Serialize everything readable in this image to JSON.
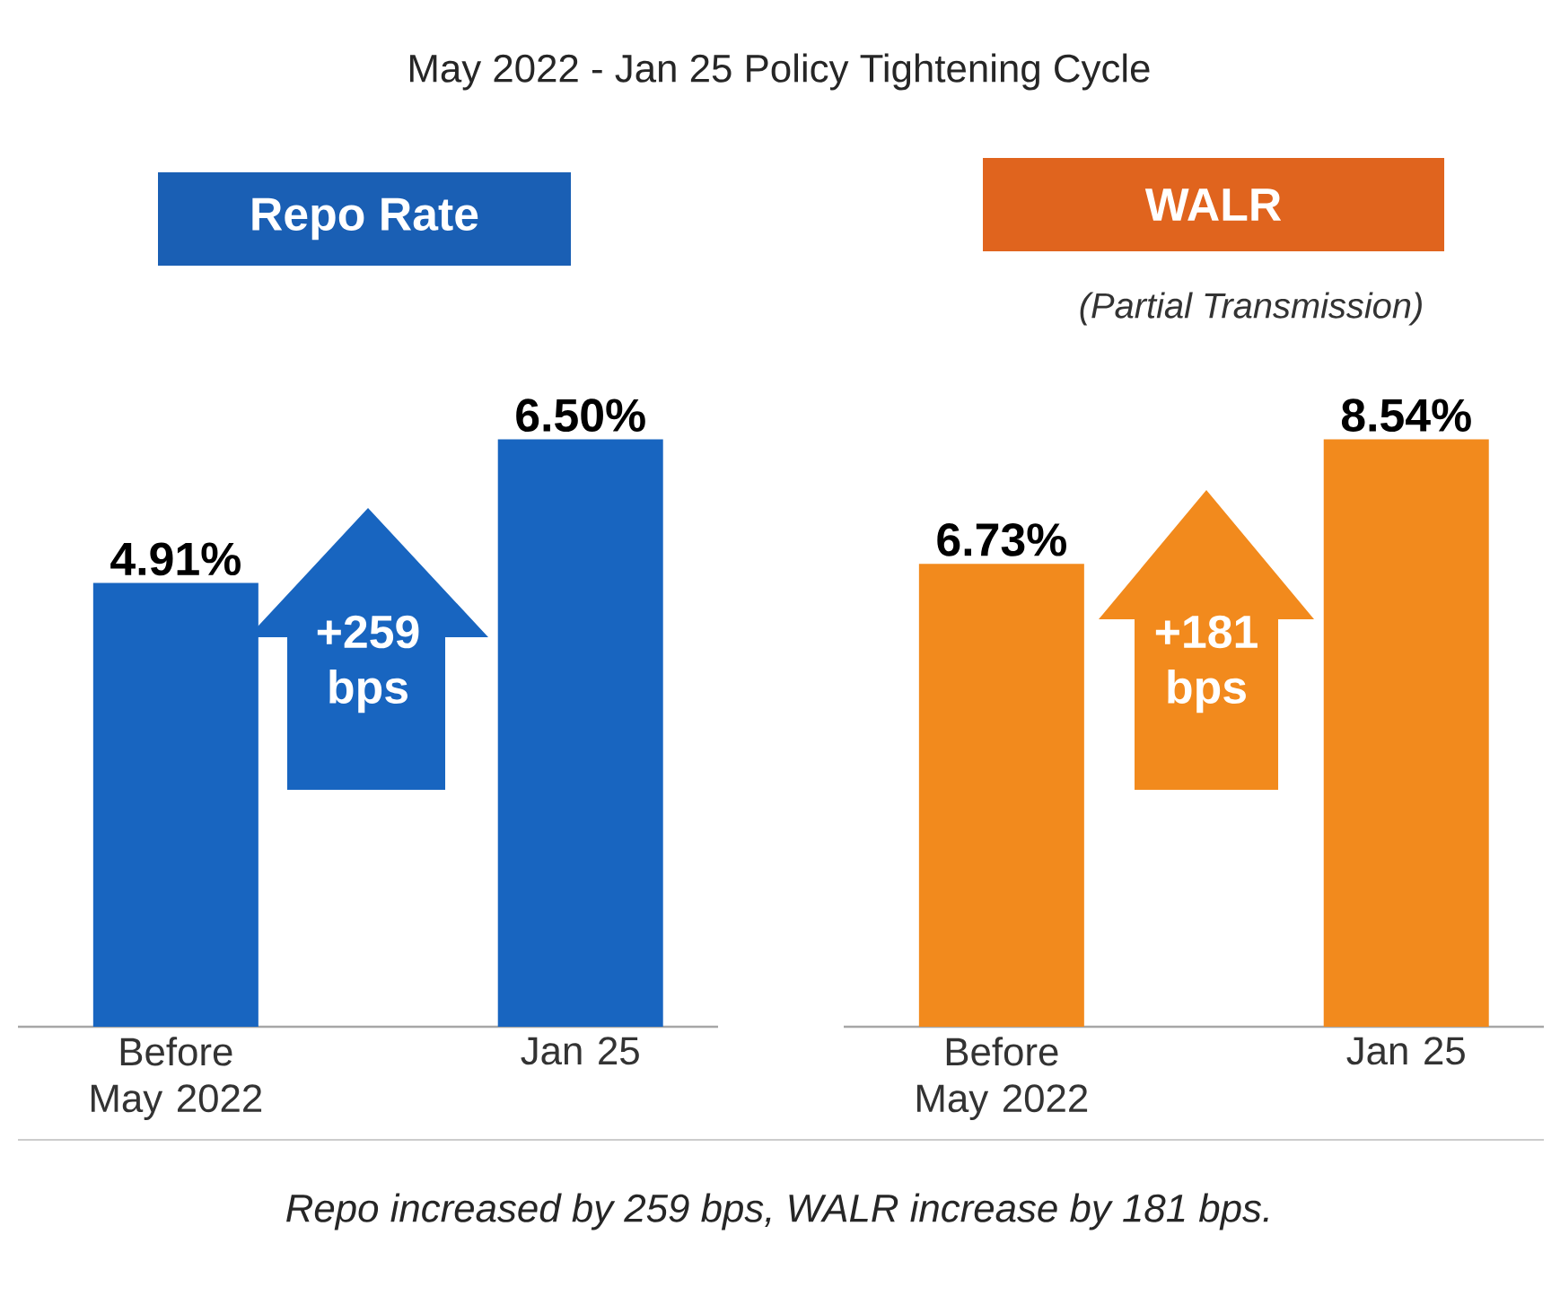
{
  "chart_data": [
    {
      "type": "bar",
      "title": "Repo Rate",
      "categories": [
        "Before May 2022",
        "Jan 25"
      ],
      "values": [
        4.91,
        6.5
      ],
      "color": "#1865c0",
      "value_labels": [
        "4.91%",
        "6.50%"
      ],
      "annotations": [
        "May 2022 - Jan 25 Policy Tightening Cycle",
        "+259 bps"
      ]
    },
    {
      "type": "bar",
      "title": "WALR",
      "subtitle": "(Partial Transmission)",
      "categories": [
        "Before May 2022",
        "Jan 25"
      ],
      "values": [
        6.73,
        8.54
      ],
      "color": "#f28a1d",
      "value_labels": [
        "6.73%",
        "8.54%"
      ],
      "annotations": [
        "+181 bps",
        "Repo increased by 259 bps, WALR increase by 181 bps."
      ]
    }
  ]
}
